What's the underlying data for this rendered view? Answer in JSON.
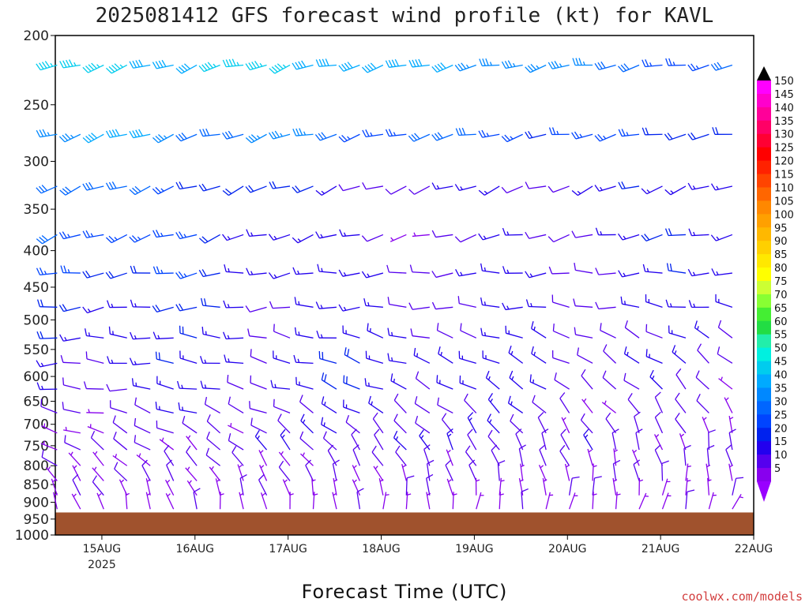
{
  "chart_data": {
    "type": "wind-barb-profile",
    "title": "2025081412 GFS forecast wind profile (kt) for KAVL",
    "xlabel": "Forecast Time (UTC)",
    "ylabel": "",
    "credit": "coolwx.com/models",
    "y_ticks": [
      "200",
      "250",
      "300",
      "350",
      "400",
      "450",
      "500",
      "550",
      "600",
      "650",
      "700",
      "750",
      "800",
      "850",
      "900",
      "950",
      "1000"
    ],
    "y_levels": [
      200,
      250,
      300,
      350,
      400,
      450,
      500,
      550,
      600,
      650,
      700,
      750,
      800,
      850,
      900,
      950,
      1000
    ],
    "ylim": [
      1000,
      200
    ],
    "x_ticks": [
      {
        "label": "15AUG",
        "sublabel": "2025",
        "day": 0.5
      },
      {
        "label": "16AUG",
        "day": 1.5
      },
      {
        "label": "17AUG",
        "day": 2.5
      },
      {
        "label": "18AUG",
        "day": 3.5
      },
      {
        "label": "19AUG",
        "day": 4.5
      },
      {
        "label": "20AUG",
        "day": 5.5
      },
      {
        "label": "21AUG",
        "day": 6.5
      },
      {
        "label": "22AUG",
        "day": 7.5
      }
    ],
    "x_range_days": [
      0,
      7.5
    ],
    "barb_pressure_levels": [
      220,
      275,
      325,
      380,
      430,
      480,
      530,
      575,
      625,
      675,
      720,
      760,
      800,
      840,
      880,
      920
    ],
    "barb_time_step_hours": 6,
    "wind_bands": [
      {
        "p": 220,
        "speed_start": 45,
        "speed_mid": 40,
        "speed_end": 25,
        "dir_start": 250,
        "dir_end": 260
      },
      {
        "p": 275,
        "speed_start": 38,
        "speed_mid": 28,
        "speed_end": 20,
        "dir_start": 250,
        "dir_end": 260
      },
      {
        "p": 325,
        "speed_start": 32,
        "speed_mid": 10,
        "speed_end": 18,
        "dir_start": 250,
        "dir_end": 250
      },
      {
        "p": 380,
        "speed_start": 30,
        "speed_mid": 8,
        "speed_end": 18,
        "dir_start": 250,
        "dir_end": 260
      },
      {
        "p": 430,
        "speed_start": 26,
        "speed_mid": 12,
        "speed_end": 16,
        "dir_start": 260,
        "dir_end": 270
      },
      {
        "p": 480,
        "speed_start": 20,
        "speed_mid": 12,
        "speed_end": 14,
        "dir_start": 260,
        "dir_end": 280
      },
      {
        "p": 530,
        "speed_start": 16,
        "speed_mid": 14,
        "speed_end": 10,
        "dir_start": 270,
        "dir_end": 300
      },
      {
        "p": 575,
        "speed_start": 14,
        "speed_mid": 16,
        "speed_end": 10,
        "dir_start": 270,
        "dir_end": 310
      },
      {
        "p": 625,
        "speed_start": 12,
        "speed_mid": 16,
        "speed_end": 8,
        "dir_start": 270,
        "dir_end": 320
      },
      {
        "p": 675,
        "speed_start": 10,
        "speed_mid": 12,
        "speed_end": 8,
        "dir_start": 280,
        "dir_end": 330
      },
      {
        "p": 720,
        "speed_start": 8,
        "speed_mid": 12,
        "speed_end": 8,
        "dir_start": 290,
        "dir_end": 340
      },
      {
        "p": 760,
        "speed_start": 8,
        "speed_mid": 12,
        "speed_end": 8,
        "dir_start": 300,
        "dir_end": 350
      },
      {
        "p": 800,
        "speed_start": 6,
        "speed_mid": 10,
        "speed_end": 8,
        "dir_start": 310,
        "dir_end": 350
      },
      {
        "p": 840,
        "speed_start": 6,
        "speed_mid": 8,
        "speed_end": 6,
        "dir_start": 320,
        "dir_end": 0
      },
      {
        "p": 880,
        "speed_start": 5,
        "speed_mid": 6,
        "speed_end": 6,
        "dir_start": 330,
        "dir_end": 10
      },
      {
        "p": 920,
        "speed_start": 5,
        "speed_mid": 5,
        "speed_end": 5,
        "dir_start": 340,
        "dir_end": 20
      }
    ],
    "surface_pressure": 930,
    "surface_color": "#a0522d",
    "colorbar": {
      "labels": [
        "150",
        "145",
        "140",
        "135",
        "130",
        "125",
        "120",
        "115",
        "110",
        "105",
        "100",
        "95",
        "90",
        "85",
        "80",
        "75",
        "70",
        "65",
        "60",
        "55",
        "50",
        "45",
        "40",
        "35",
        "30",
        "25",
        "20",
        "15",
        "10",
        "5"
      ],
      "colors": [
        "#ff00ff",
        "#ff00cc",
        "#ff0099",
        "#ff0066",
        "#ff0033",
        "#ff0000",
        "#ff2200",
        "#ff4400",
        "#ff6600",
        "#ff8800",
        "#ffa000",
        "#ffb800",
        "#ffd000",
        "#ffe800",
        "#ffff00",
        "#ccff33",
        "#88ff33",
        "#44ee33",
        "#22dd44",
        "#22eeaa",
        "#00f0e0",
        "#00ccee",
        "#00aaff",
        "#0088ff",
        "#0066ff",
        "#0044ff",
        "#0022ee",
        "#2200ee",
        "#5500ee",
        "#8800ee"
      ],
      "top_arrow_color": "#000000",
      "bottom_arrow_color": "#9900ff"
    }
  }
}
